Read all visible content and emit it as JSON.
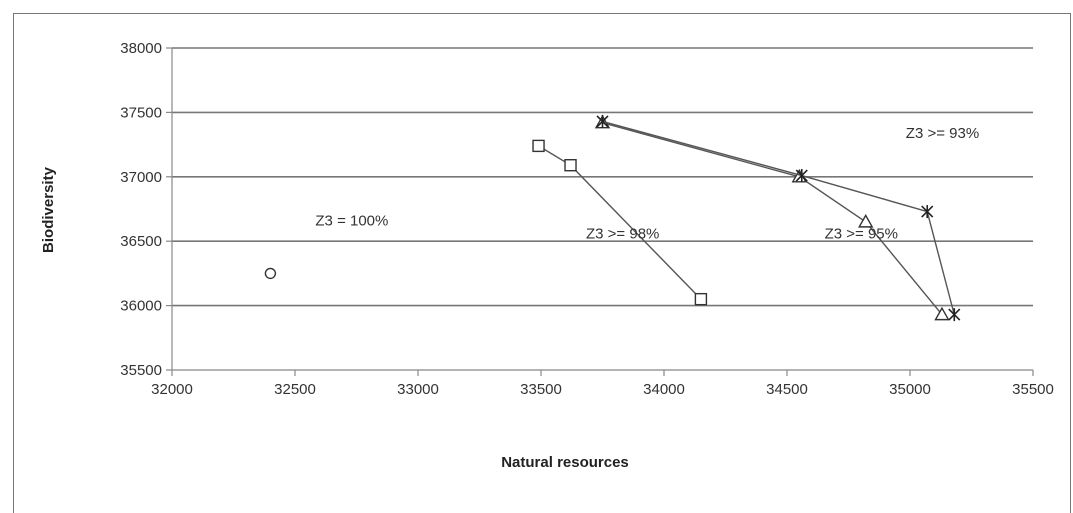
{
  "chart_data": {
    "type": "scatter",
    "title": "",
    "xlabel": "Natural resources",
    "ylabel": "Biodiversity",
    "xlim": [
      32000,
      35500
    ],
    "ylim": [
      35500,
      38000
    ],
    "x_ticks": [
      32000,
      32500,
      33000,
      33500,
      34000,
      34500,
      35000,
      35500
    ],
    "y_ticks": [
      35500,
      36000,
      36500,
      37000,
      37500,
      38000
    ],
    "x_tick_labels": [
      "32000",
      "32500",
      "33000",
      "33500",
      "34000",
      "34500",
      "35000",
      "35500"
    ],
    "y_tick_labels": [
      "35500",
      "36000",
      "36500",
      "37000",
      "37500",
      "38000"
    ],
    "grid": "horizontal",
    "series": [
      {
        "marker": "circle",
        "connected": false,
        "points": [
          [
            32400,
            36250
          ]
        ]
      },
      {
        "marker": "square",
        "connected": true,
        "points": [
          [
            33490,
            37240
          ],
          [
            33620,
            37090
          ],
          [
            34150,
            36050
          ]
        ]
      },
      {
        "marker": "triangle",
        "connected": true,
        "points": [
          [
            33750,
            37420
          ],
          [
            34550,
            37000
          ],
          [
            34820,
            36650
          ],
          [
            35130,
            35930
          ]
        ]
      },
      {
        "marker": "asterisk",
        "connected": true,
        "points": [
          [
            33750,
            37430
          ],
          [
            34560,
            37010
          ],
          [
            35070,
            36730
          ],
          [
            35180,
            35930
          ]
        ]
      }
    ],
    "annotations": [
      {
        "text": "Z3 = 100%",
        "x": 32400,
        "y": 36620
      },
      {
        "text": "Z3 >= 98%",
        "x": 33500,
        "y": 36520
      },
      {
        "text": "Z3 >= 95%",
        "x": 34470,
        "y": 36520
      },
      {
        "text": "Z3 >= 93%",
        "x": 34800,
        "y": 37300
      }
    ],
    "colors": {
      "line": "#555555",
      "grid": "#777777",
      "axis": "#888888"
    }
  }
}
